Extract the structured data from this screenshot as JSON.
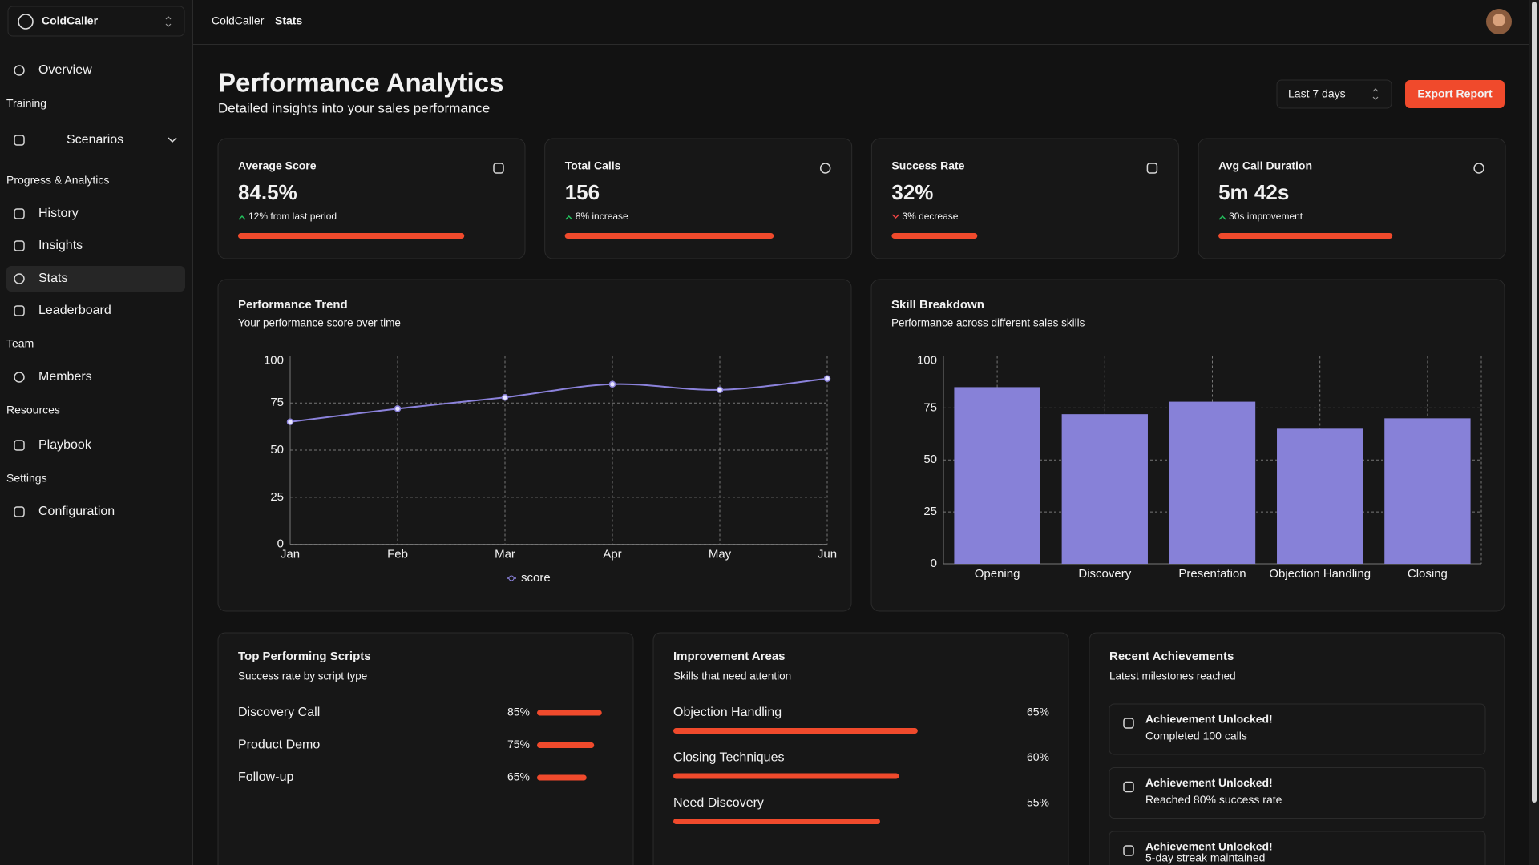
{
  "sidebar": {
    "app": "ColdCaller",
    "nav": [
      {
        "label": "Overview"
      },
      {
        "heading": "Training"
      },
      {
        "label": "Scenarios"
      },
      {
        "heading": "Progress & Analytics"
      },
      {
        "label": "History"
      },
      {
        "label": "Insights"
      },
      {
        "label": "Stats"
      },
      {
        "label": "Leaderboard"
      },
      {
        "heading": "Team"
      },
      {
        "label": "Members"
      },
      {
        "heading": "Resources"
      },
      {
        "label": "Playbook"
      },
      {
        "heading": "Settings"
      },
      {
        "label": "Configuration"
      }
    ]
  },
  "header": {
    "breadcrumb": [
      "ColdCaller",
      "Stats"
    ]
  },
  "page": {
    "title": "Performance Analytics",
    "subtitle": "Detailed insights into your sales performance",
    "range": "Last 7 days",
    "export": "Export Report"
  },
  "stats": [
    {
      "label": "Average Score",
      "value": "84.5%",
      "change": "12% from last period",
      "direction": "up",
      "progress": 84.5
    },
    {
      "label": "Total Calls",
      "value": "156",
      "change": "8% increase",
      "direction": "up",
      "progress": 78
    },
    {
      "label": "Success Rate",
      "value": "32%",
      "change": "3% decrease",
      "direction": "down",
      "progress": 32
    },
    {
      "label": "Avg Call Duration",
      "value": "5m 42s",
      "change": "30s improvement",
      "direction": "up",
      "progress": 65
    }
  ],
  "chart_data": [
    {
      "type": "line",
      "title": "Performance Trend",
      "subtitle": "Your performance score over time",
      "categories": [
        "Jan",
        "Feb",
        "Mar",
        "Apr",
        "May",
        "Jun"
      ],
      "series": [
        {
          "name": "score",
          "color": "#8b82db",
          "values": [
            65,
            72,
            78,
            85,
            82,
            88
          ]
        }
      ],
      "ylim": [
        0,
        100
      ],
      "yticks": [
        0,
        25,
        50,
        75,
        100
      ],
      "grid": true
    },
    {
      "type": "bar",
      "title": "Skill Breakdown",
      "subtitle": "Performance across different sales skills",
      "categories": [
        "Opening",
        "Discovery",
        "Presentation",
        "Objection Handling",
        "Closing"
      ],
      "values": [
        85,
        72,
        78,
        65,
        70
      ],
      "color": "#8781d8",
      "ylim": [
        0,
        100
      ],
      "yticks": [
        0,
        25,
        50,
        75,
        100
      ],
      "grid": true
    }
  ],
  "scripts": {
    "title": "Top Performing Scripts",
    "subtitle": "Success rate by script type",
    "items": [
      {
        "name": "Discovery Call",
        "value": 85,
        "value_label": "85%"
      },
      {
        "name": "Product Demo",
        "value": 75,
        "value_label": "75%"
      },
      {
        "name": "Follow-up",
        "value": 65,
        "value_label": "65%"
      }
    ]
  },
  "improvements": {
    "title": "Improvement Areas",
    "subtitle": "Skills that need attention",
    "items": [
      {
        "name": "Objection Handling",
        "value": 65,
        "value_label": "65%"
      },
      {
        "name": "Closing Techniques",
        "value": 60,
        "value_label": "60%"
      },
      {
        "name": "Need Discovery",
        "value": 55,
        "value_label": "55%"
      }
    ]
  },
  "achievements": {
    "title": "Recent Achievements",
    "subtitle": "Latest milestones reached",
    "items": [
      {
        "title": "Achievement Unlocked!",
        "text": "Completed 100 calls"
      },
      {
        "title": "Achievement Unlocked!",
        "text": "Reached 80% success rate"
      },
      {
        "title": "Achievement Unlocked!",
        "text": "5-day streak maintained"
      }
    ]
  }
}
